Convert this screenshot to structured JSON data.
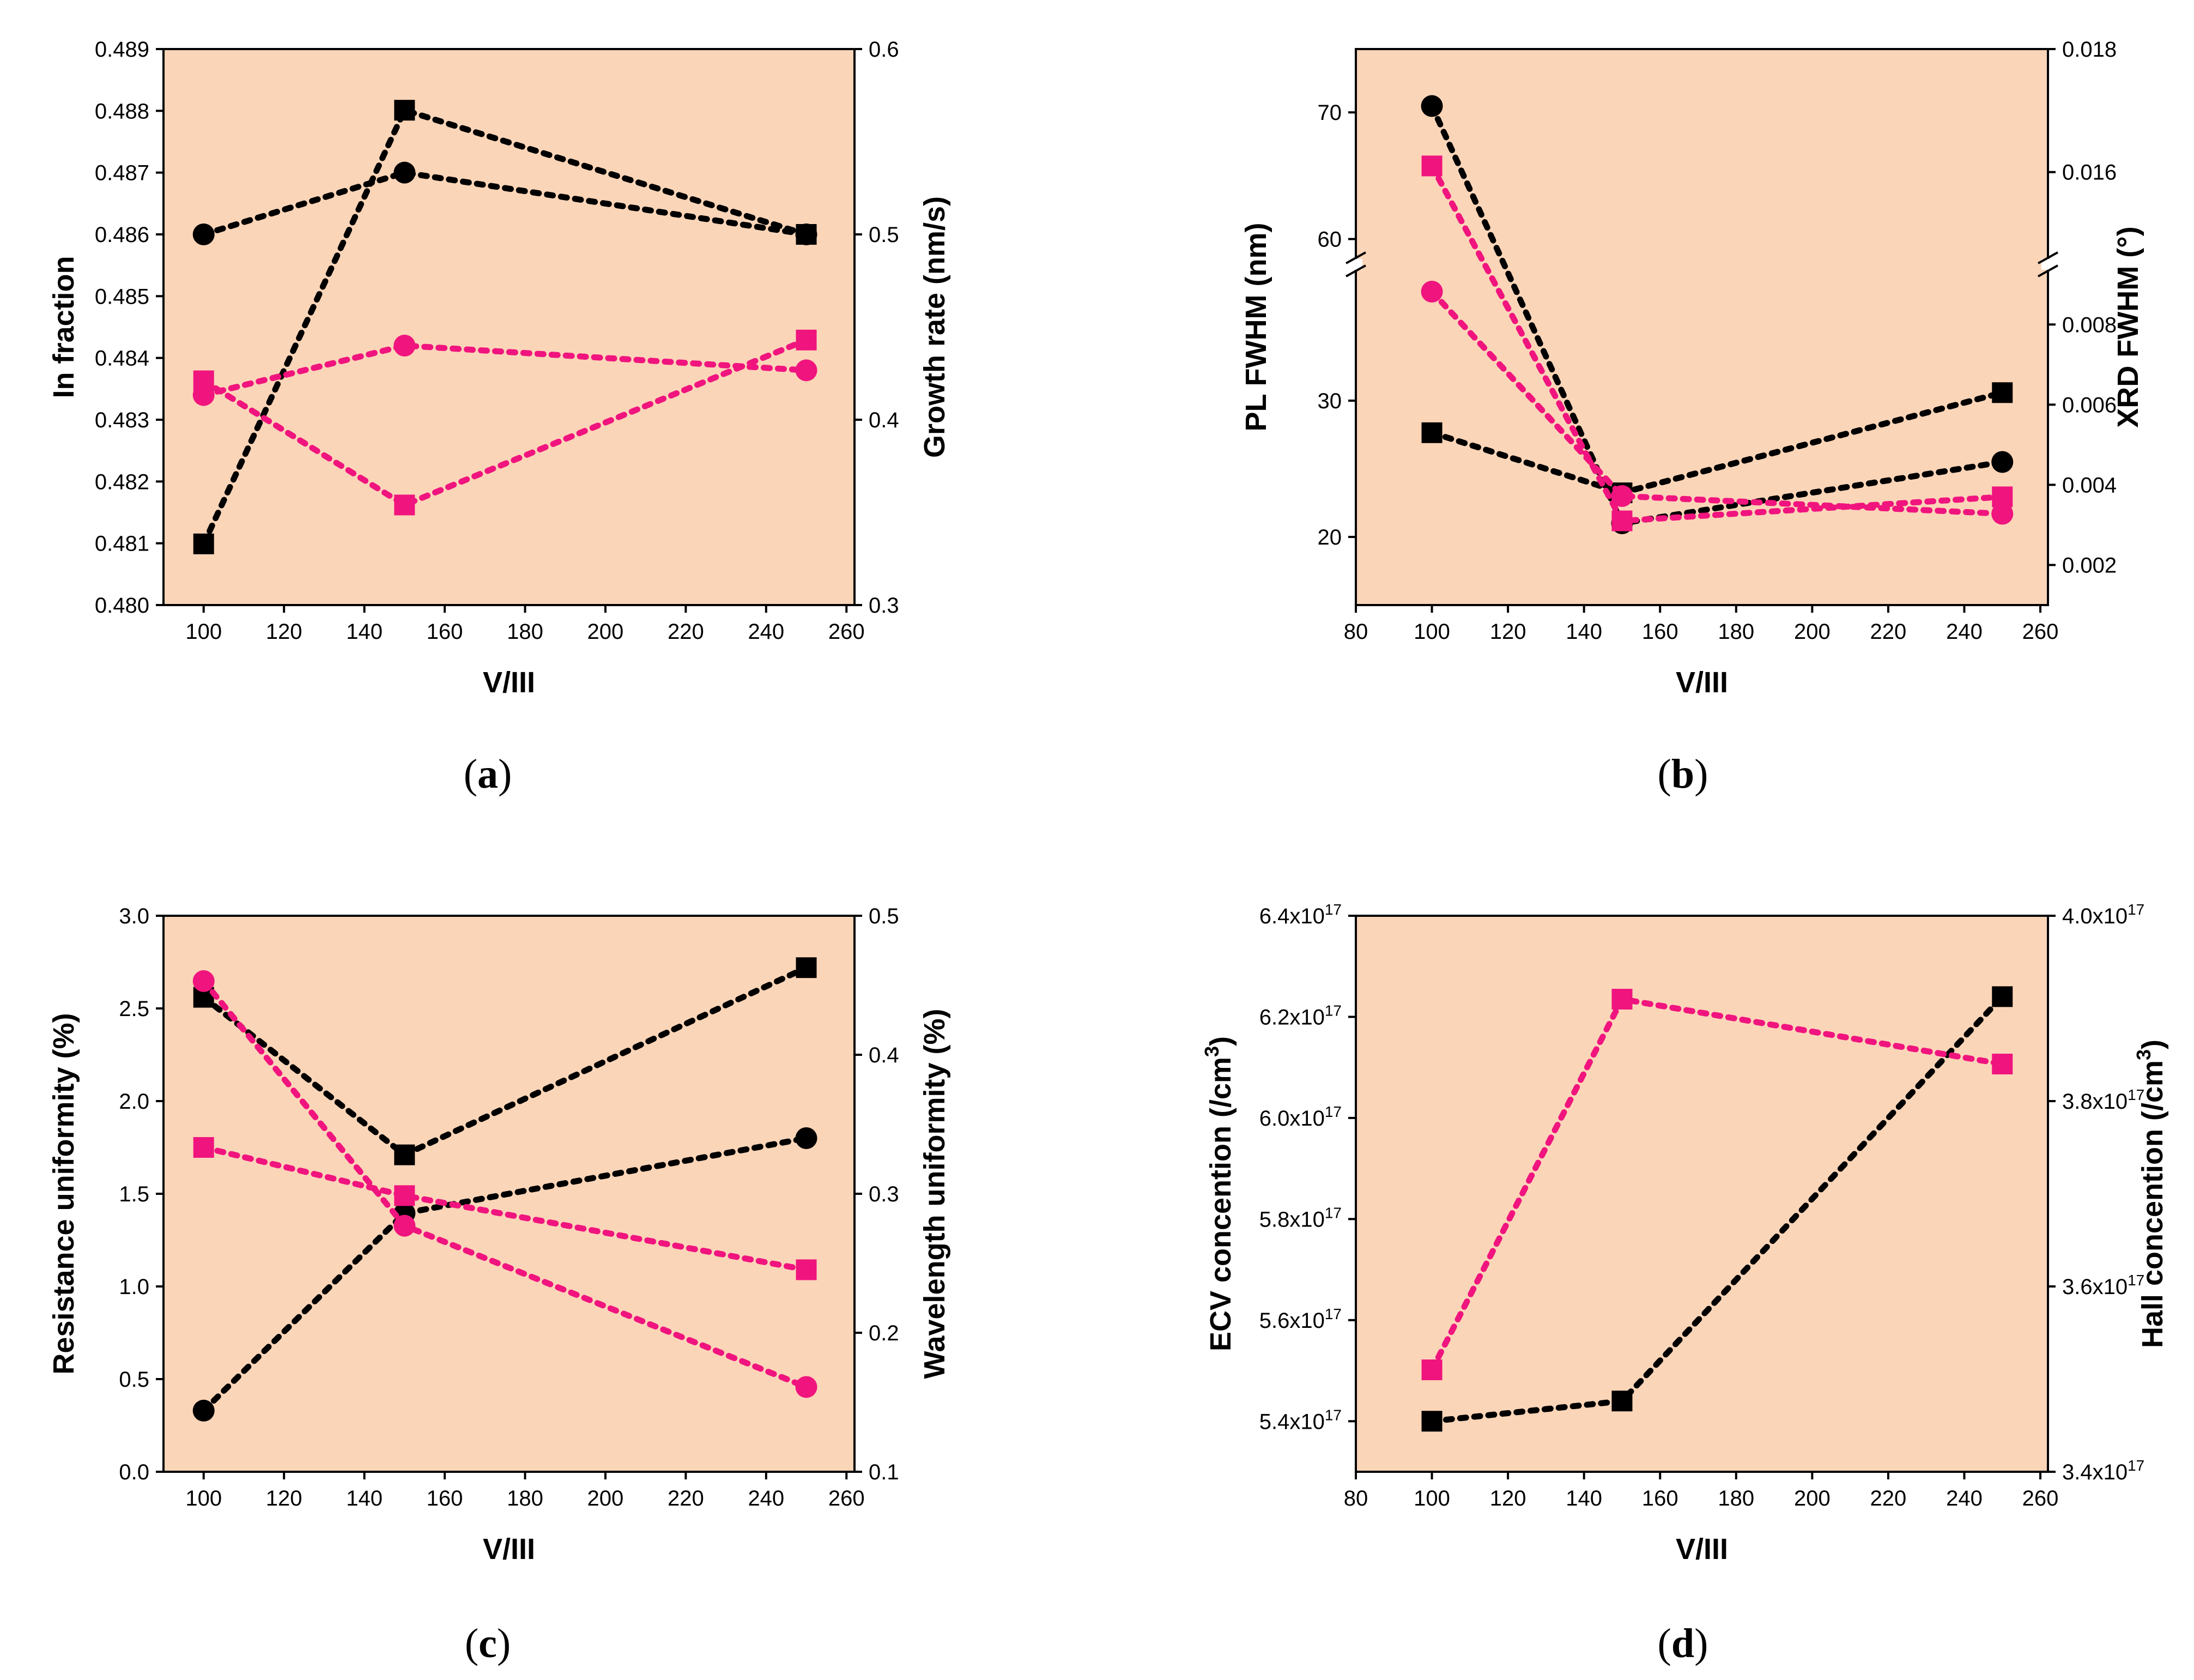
{
  "colors": {
    "panel_bg": "#FBD5B8",
    "black_series": "#000000",
    "pink_series": "#F0147E"
  },
  "chart_data": [
    {
      "type": "scatter",
      "caption": "a",
      "xlabel": "V/III",
      "ylabel_left": "In fraction",
      "ylabel_right": "Growth rate (nm/s)",
      "xlim": [
        90,
        262
      ],
      "xticks": [
        100,
        120,
        140,
        160,
        180,
        200,
        220,
        240,
        260
      ],
      "ylim_left": [
        0.48,
        0.489
      ],
      "yticks_left": [
        "0.480",
        "0.481",
        "0.482",
        "0.483",
        "0.484",
        "0.485",
        "0.486",
        "0.487",
        "0.488",
        "0.489"
      ],
      "ylim_right": [
        0.3,
        0.6
      ],
      "yticks_right": [
        "0.3",
        "0.4",
        "0.5",
        "0.6"
      ],
      "series": [
        {
          "name": "In fraction (black circles)",
          "axis": "left",
          "color": "black",
          "marker": "circle",
          "x": [
            100,
            150,
            250
          ],
          "y": [
            0.486,
            0.487,
            0.486
          ]
        },
        {
          "name": "Growth rate (black squares)",
          "axis": "right",
          "color": "black",
          "marker": "square",
          "x": [
            100,
            150,
            250
          ],
          "y": [
            0.333,
            0.567,
            0.5
          ]
        },
        {
          "name": "In fraction (pink circles)",
          "axis": "left",
          "color": "pink",
          "marker": "circle",
          "x": [
            100,
            150,
            250
          ],
          "y": [
            0.4834,
            0.4842,
            0.4838
          ]
        },
        {
          "name": "Growth rate (pink squares)",
          "axis": "right",
          "color": "pink",
          "marker": "square",
          "x": [
            100,
            150,
            250
          ],
          "y": [
            0.421,
            0.354,
            0.443
          ]
        }
      ]
    },
    {
      "type": "scatter",
      "caption": "b",
      "xlabel": "V/III",
      "ylabel_left": "PL FWHM (nm)",
      "ylabel_right": "XRD FWHM (°)",
      "xlim": [
        80,
        262
      ],
      "xticks": [
        80,
        100,
        120,
        140,
        160,
        180,
        200,
        220,
        240,
        260
      ],
      "axis_break": true,
      "ylim_left_lower": [
        15,
        40
      ],
      "ylim_left_upper": [
        58,
        75
      ],
      "yticks_left": [
        20,
        30,
        60,
        70
      ],
      "ylim_right_lower": [
        0.001,
        0.0095
      ],
      "ylim_right_upper": [
        0.0145,
        0.018
      ],
      "yticks_right": [
        "0.002",
        "0.004",
        "0.006",
        "0.008",
        "0.016",
        "0.018"
      ],
      "series": [
        {
          "name": "PL FWHM (black circles)",
          "axis": "left",
          "color": "black",
          "marker": "circle",
          "x": [
            100,
            150,
            250
          ],
          "y": [
            70.5,
            21,
            25.5
          ]
        },
        {
          "name": "XRD FWHM (black squares)",
          "axis": "right",
          "color": "black",
          "marker": "square",
          "x": [
            100,
            150,
            250
          ],
          "y": [
            0.0053,
            0.0038,
            0.0063
          ]
        },
        {
          "name": "PL FWHM (pink circles)",
          "axis": "left",
          "color": "pink",
          "marker": "circle",
          "x": [
            100,
            150,
            250
          ],
          "y": [
            38,
            23,
            21.7
          ]
        },
        {
          "name": "XRD FWHM (pink squares)",
          "axis": "right",
          "color": "pink",
          "marker": "square",
          "x": [
            100,
            150,
            250
          ],
          "y": [
            0.0161,
            0.0031,
            0.0037
          ]
        }
      ]
    },
    {
      "type": "scatter",
      "caption": "c",
      "xlabel": "V/III",
      "ylabel_left": "Resistance uniformity (%)",
      "ylabel_right": "Wavelength uniformity (%)",
      "xlim": [
        90,
        262
      ],
      "xticks": [
        100,
        120,
        140,
        160,
        180,
        200,
        220,
        240,
        260
      ],
      "ylim_left": [
        0,
        3
      ],
      "yticks_left": [
        "0.0",
        "0.5",
        "1.0",
        "1.5",
        "2.0",
        "2.5",
        "3.0"
      ],
      "ylim_right": [
        0.1,
        0.5
      ],
      "yticks_right": [
        "0.1",
        "0.2",
        "0.3",
        "0.4",
        "0.5"
      ],
      "series": [
        {
          "name": "Resistance uniformity (black squares)",
          "axis": "left",
          "color": "black",
          "marker": "square",
          "x": [
            100,
            150,
            250
          ],
          "y": [
            2.56,
            1.71,
            2.72
          ]
        },
        {
          "name": "Wavelength uniformity (black circles)",
          "axis": "right",
          "color": "black",
          "marker": "circle",
          "x": [
            100,
            150,
            250
          ],
          "y": [
            0.144,
            0.286,
            0.34
          ]
        },
        {
          "name": "Resistance uniformity (pink squares)",
          "axis": "left",
          "color": "pink",
          "marker": "square",
          "x": [
            100,
            150,
            250
          ],
          "y": [
            1.75,
            1.49,
            1.09
          ]
        },
        {
          "name": "Wavelength uniformity (pink circles)",
          "axis": "right",
          "color": "pink",
          "marker": "circle",
          "x": [
            100,
            150,
            250
          ],
          "y": [
            0.453,
            0.277,
            0.161
          ]
        }
      ]
    },
    {
      "type": "scatter",
      "caption": "d",
      "xlabel": "V/III",
      "ylabel_left": "ECV concention (/cm",
      "ylabel_right": "Hall concention (/cm",
      "ylabel_sup": "3",
      "ylabel_end": ")",
      "xlim": [
        80,
        262
      ],
      "xticks": [
        80,
        100,
        120,
        140,
        160,
        180,
        200,
        220,
        240,
        260
      ],
      "ylim_left": [
        5.3e+17,
        6.4e+17
      ],
      "yticks_left": [
        "5.4",
        "5.6",
        "5.8",
        "6.0",
        "6.2",
        "6.4"
      ],
      "ylim_right": [
        3.4e+17,
        4e+17
      ],
      "yticks_right": [
        "3.4",
        "3.6",
        "3.8",
        "4.0"
      ],
      "tick_suffix": "x10",
      "tick_exp": "17",
      "series": [
        {
          "name": "ECV concentration (black squares)",
          "axis": "left",
          "color": "black",
          "marker": "square",
          "x": [
            100,
            150,
            250
          ],
          "y": [
            5.4e+17,
            5.44e+17,
            6.24e+17
          ]
        },
        {
          "name": "Hall concentration (pink squares)",
          "axis": "right",
          "color": "pink",
          "marker": "square",
          "x": [
            100,
            150,
            250
          ],
          "y": [
            3.51e+17,
            3.91e+17,
            3.84e+17
          ]
        }
      ]
    }
  ]
}
